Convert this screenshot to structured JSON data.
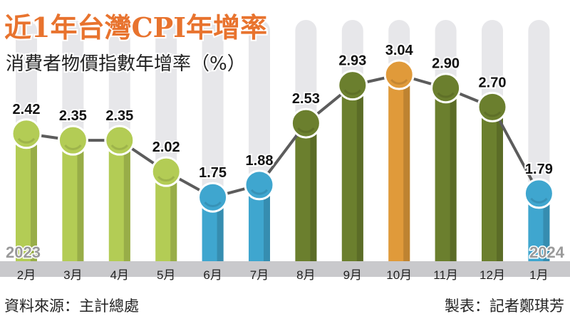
{
  "header": {
    "title": "近1年台灣CPI年增率",
    "subtitle": "消費者物價指數年增率（%）"
  },
  "footer": {
    "source": "資料來源：主計總處",
    "credit": "製表：記者鄭琪芳"
  },
  "year_labels": {
    "start": "2023",
    "end": "2024"
  },
  "colors": {
    "title": "#e8732e",
    "subtitle": "#222222",
    "light_green": "#b3cc55",
    "dark_green": "#6b7f2e",
    "blue": "#3fa6cf",
    "orange": "#e09a3a",
    "track": "#e7e7ea",
    "line": "#5c5c5c",
    "axis_band": "#c9c9cc",
    "year_text": "#9a9a9a"
  },
  "chart_data": {
    "type": "line",
    "title": "近1年台灣CPI年增率",
    "subtitle": "消費者物價指數年增率（%）",
    "xlabel": "",
    "ylabel": "",
    "categories": [
      "2月",
      "3月",
      "4月",
      "5月",
      "6月",
      "7月",
      "8月",
      "9月",
      "10月",
      "11月",
      "12月",
      "1月"
    ],
    "series": [
      {
        "values": [
          2.42,
          2.35,
          2.35,
          2.02,
          1.75,
          1.88,
          2.53,
          2.93,
          3.04,
          2.9,
          2.7,
          1.79
        ]
      }
    ],
    "point_colors": [
      "light_green",
      "light_green",
      "light_green",
      "light_green",
      "blue",
      "blue",
      "dark_green",
      "dark_green",
      "orange",
      "dark_green",
      "dark_green",
      "blue"
    ],
    "ylim": [
      1.3,
      3.1
    ],
    "grid": false,
    "legend": "none"
  }
}
